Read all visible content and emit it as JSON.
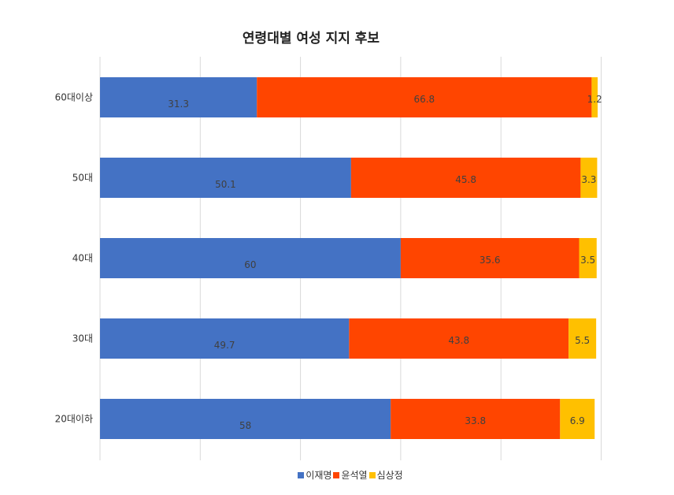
{
  "chart_data": {
    "type": "bar",
    "orientation": "horizontal",
    "stacked": true,
    "title": "연령대별 여성 지지 후보",
    "categories": [
      "60대이상",
      "50대",
      "40대",
      "30대",
      "20대이하"
    ],
    "series": [
      {
        "name": "이재명",
        "color": "#4472C4",
        "values": [
          31.3,
          50.1,
          60,
          49.7,
          58
        ]
      },
      {
        "name": "윤석열",
        "color": "#FF4500",
        "values": [
          66.8,
          45.8,
          35.6,
          43.8,
          33.8
        ]
      },
      {
        "name": "심상정",
        "color": "#FFC000",
        "values": [
          1.2,
          3.3,
          3.5,
          5.5,
          6.9
        ]
      }
    ],
    "xlim": [
      0,
      100
    ],
    "grid": true,
    "legend_position": "bottom"
  }
}
